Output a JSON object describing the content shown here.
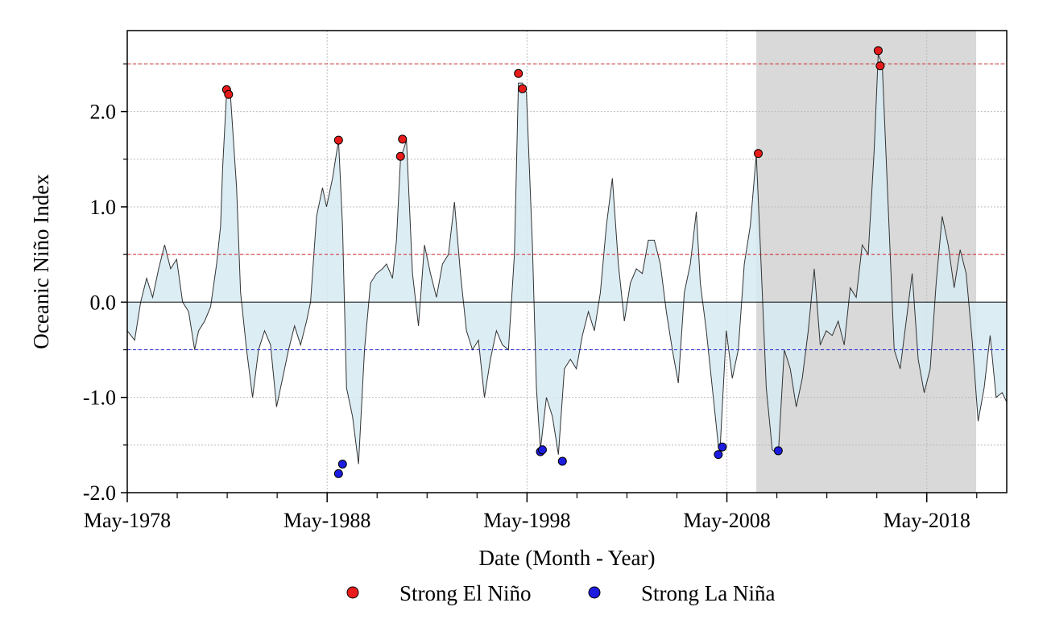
{
  "chart_data": {
    "type": "area",
    "title": "",
    "xlabel": "Date (Month - Year)",
    "ylabel": "Oceanic Niño Index",
    "x_ticks": [
      "May-1978",
      "May-1988",
      "May-1998",
      "May-2008",
      "May-2018"
    ],
    "x_tick_years": [
      1978.33,
      1988.33,
      1998.33,
      2008.33,
      2018.33
    ],
    "y_ticks": [
      "2.0",
      "1.0",
      "0.0",
      "-1.0",
      "-2.0"
    ],
    "y_tick_values": [
      2.0,
      1.0,
      0.0,
      -1.0,
      -2.0
    ],
    "xlim": [
      1978.33,
      2022.33
    ],
    "ylim": [
      -2.0,
      2.85
    ],
    "grid": true,
    "shaded_period": [
      2009.8,
      2020.8
    ],
    "reference_lines": [
      {
        "value": 2.5,
        "color": "#d62728",
        "style": "dashed"
      },
      {
        "value": 0.5,
        "color": "#d62728",
        "style": "dashed"
      },
      {
        "value": 0.0,
        "color": "#000000",
        "style": "solid"
      },
      {
        "value": -0.5,
        "color": "#1f1fd6",
        "style": "dashed"
      }
    ],
    "series": [
      {
        "name": "Oceanic Niño Index",
        "fill": "#d6eaf2",
        "x": [
          1978.33,
          1978.7,
          1979.0,
          1979.3,
          1979.6,
          1979.9,
          1980.2,
          1980.5,
          1980.8,
          1981.1,
          1981.4,
          1981.7,
          1981.9,
          1982.2,
          1982.5,
          1982.8,
          1983.0,
          1983.1,
          1983.3,
          1983.5,
          1983.8,
          1984.0,
          1984.3,
          1984.6,
          1984.9,
          1985.2,
          1985.5,
          1985.8,
          1986.1,
          1986.4,
          1986.7,
          1987.0,
          1987.3,
          1987.5,
          1987.8,
          1988.1,
          1988.3,
          1988.6,
          1988.9,
          1989.1,
          1989.3,
          1989.6,
          1989.9,
          1990.2,
          1990.5,
          1990.8,
          1991.1,
          1991.3,
          1991.6,
          1991.8,
          1992.0,
          1992.3,
          1992.6,
          1992.9,
          1993.2,
          1993.5,
          1993.8,
          1994.1,
          1994.4,
          1994.7,
          1995.0,
          1995.3,
          1995.6,
          1995.9,
          1996.2,
          1996.5,
          1996.8,
          1997.1,
          1997.4,
          1997.7,
          1997.9,
          1998.1,
          1998.3,
          1998.6,
          1998.8,
          1999.0,
          1999.3,
          1999.6,
          1999.9,
          2000.2,
          2000.5,
          2000.8,
          2001.1,
          2001.4,
          2001.7,
          2002.0,
          2002.3,
          2002.6,
          2002.9,
          2003.2,
          2003.5,
          2003.8,
          2004.1,
          2004.4,
          2004.7,
          2005.0,
          2005.3,
          2005.6,
          2005.9,
          2006.2,
          2006.5,
          2006.8,
          2007.0,
          2007.3,
          2007.6,
          2007.9,
          2008.0,
          2008.3,
          2008.6,
          2008.9,
          2009.2,
          2009.5,
          2009.8,
          2010.0,
          2010.3,
          2010.6,
          2010.9,
          2011.2,
          2011.5,
          2011.8,
          2012.1,
          2012.4,
          2012.7,
          2013.0,
          2013.3,
          2013.6,
          2013.9,
          2014.2,
          2014.5,
          2014.8,
          2015.1,
          2015.4,
          2015.7,
          2015.9,
          2016.1,
          2016.4,
          2016.7,
          2017.0,
          2017.3,
          2017.6,
          2017.9,
          2018.2,
          2018.5,
          2018.8,
          2019.1,
          2019.4,
          2019.7,
          2020.0,
          2020.3,
          2020.6,
          2020.9,
          2021.2,
          2021.5,
          2021.8,
          2022.1,
          2022.33
        ],
        "y": [
          -0.3,
          -0.4,
          0.0,
          0.25,
          0.05,
          0.35,
          0.6,
          0.35,
          0.45,
          0.0,
          -0.1,
          -0.5,
          -0.3,
          -0.2,
          -0.05,
          0.4,
          0.8,
          1.4,
          2.2,
          2.15,
          1.2,
          0.1,
          -0.5,
          -1.0,
          -0.5,
          -0.3,
          -0.45,
          -1.1,
          -0.8,
          -0.5,
          -0.25,
          -0.45,
          -0.2,
          0.0,
          0.9,
          1.2,
          1.0,
          1.3,
          1.7,
          0.8,
          -0.9,
          -1.2,
          -1.7,
          -0.5,
          0.2,
          0.3,
          0.35,
          0.4,
          0.25,
          0.65,
          1.5,
          1.7,
          0.3,
          -0.25,
          0.6,
          0.3,
          0.05,
          0.4,
          0.5,
          1.05,
          0.3,
          -0.3,
          -0.5,
          -0.4,
          -1.0,
          -0.6,
          -0.3,
          -0.45,
          -0.5,
          0.5,
          2.3,
          2.3,
          2.2,
          0.6,
          -0.9,
          -1.55,
          -1.0,
          -1.2,
          -1.6,
          -0.7,
          -0.6,
          -0.7,
          -0.35,
          -0.1,
          -0.3,
          0.1,
          0.8,
          1.3,
          0.4,
          -0.2,
          0.2,
          0.35,
          0.3,
          0.65,
          0.65,
          0.4,
          -0.1,
          -0.5,
          -0.85,
          0.1,
          0.4,
          0.95,
          0.2,
          -0.3,
          -0.9,
          -1.5,
          -1.5,
          -0.3,
          -0.8,
          -0.5,
          0.4,
          0.8,
          1.55,
          0.6,
          -0.9,
          -1.55,
          -1.6,
          -0.5,
          -0.7,
          -1.1,
          -0.8,
          -0.3,
          0.35,
          -0.45,
          -0.3,
          -0.35,
          -0.2,
          -0.45,
          0.15,
          0.05,
          0.6,
          0.5,
          1.6,
          2.6,
          2.5,
          1.0,
          -0.5,
          -0.7,
          -0.2,
          0.3,
          -0.6,
          -0.95,
          -0.7,
          0.2,
          0.9,
          0.6,
          0.15,
          0.55,
          0.3,
          -0.4,
          -1.25,
          -0.9,
          -0.35,
          -1.0,
          -0.95,
          -1.05
        ]
      }
    ],
    "markers": {
      "el_nino": {
        "label": "Strong El Niño",
        "color": "#e81b1b",
        "points": [
          {
            "x": 1983.3,
            "y": 2.23
          },
          {
            "x": 1983.4,
            "y": 2.18
          },
          {
            "x": 1988.9,
            "y": 1.7
          },
          {
            "x": 1992.0,
            "y": 1.53
          },
          {
            "x": 1992.1,
            "y": 1.71
          },
          {
            "x": 1997.9,
            "y": 2.4
          },
          {
            "x": 1998.1,
            "y": 2.24
          },
          {
            "x": 2009.9,
            "y": 1.56
          },
          {
            "x": 2015.9,
            "y": 2.64
          },
          {
            "x": 2016.0,
            "y": 2.48
          }
        ]
      },
      "la_nina": {
        "label": "Strong La Niña",
        "color": "#1c1ce0",
        "points": [
          {
            "x": 1988.9,
            "y": -1.8
          },
          {
            "x": 1989.1,
            "y": -1.7
          },
          {
            "x": 1999.0,
            "y": -1.57
          },
          {
            "x": 1999.1,
            "y": -1.55
          },
          {
            "x": 2000.1,
            "y": -1.67
          },
          {
            "x": 2007.9,
            "y": -1.6
          },
          {
            "x": 2008.1,
            "y": -1.52
          },
          {
            "x": 2010.9,
            "y": -1.56
          }
        ]
      }
    },
    "legend_position": "bottom-center"
  }
}
